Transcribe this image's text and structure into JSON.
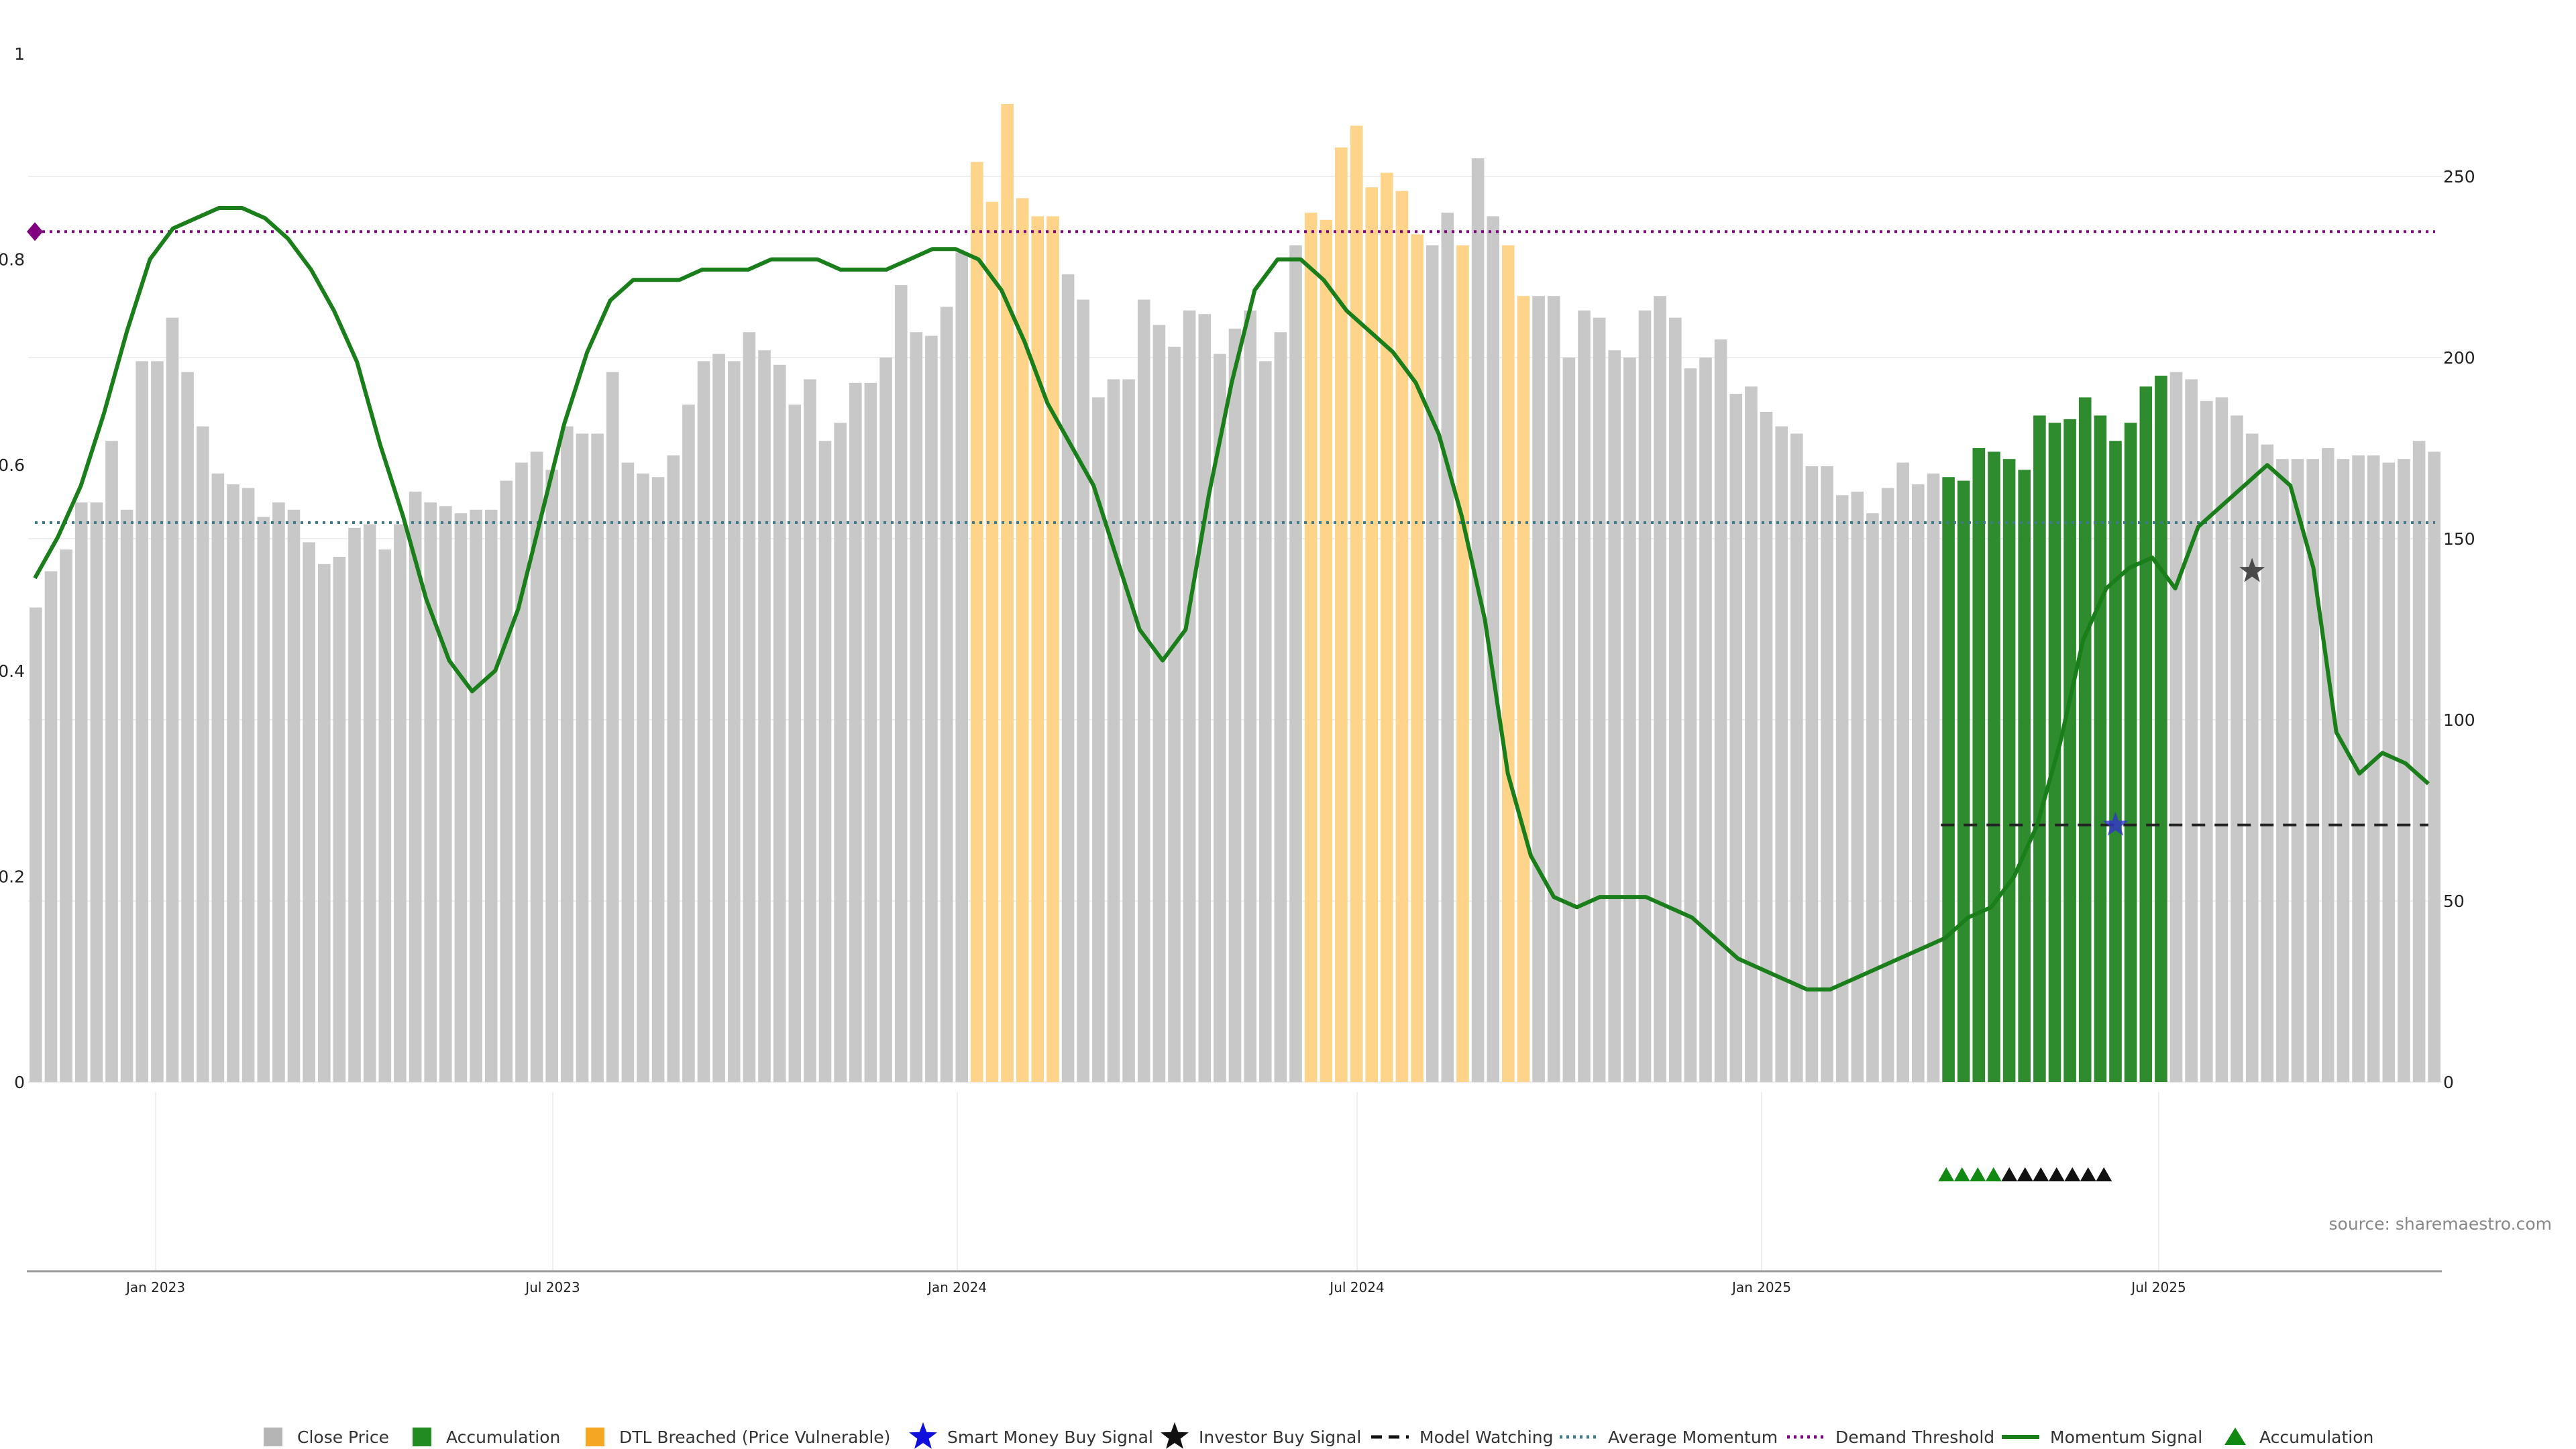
{
  "source_label": "source: sharemaestro.com",
  "colors": {
    "close": "#c8c8c8",
    "accumulation": "#2e8b2e",
    "dtl": "#fed38a",
    "momentum": "#1a7f1a",
    "avg_momentum": "#3d7a8c",
    "demand": "#800080",
    "model_watching": "#222222",
    "smart_money": "#3333cc",
    "investor": "#333333",
    "accum_marker": "#118811",
    "black_marker": "#111111",
    "grid": "#eeeeee"
  },
  "legend": [
    {
      "label": "Close Price",
      "icon": "square",
      "color": "#b5b5b5"
    },
    {
      "label": "Accumulation",
      "icon": "square",
      "color": "#228b22"
    },
    {
      "label": "DTL Breached (Price Vulnerable)",
      "icon": "square",
      "color": "#f5a623"
    },
    {
      "label": "Smart Money Buy Signal",
      "icon": "star",
      "color": "#1010dd"
    },
    {
      "label": "Investor Buy Signal",
      "icon": "star",
      "color": "#111111"
    },
    {
      "label": "Model Watching",
      "icon": "dash",
      "color": "#111111"
    },
    {
      "label": "Average Momentum",
      "icon": "dot",
      "color": "#3d7a8c"
    },
    {
      "label": "Demand Threshold",
      "icon": "dot",
      "color": "#800080"
    },
    {
      "label": "Momentum Signal",
      "icon": "line",
      "color": "#1a7f1a"
    },
    {
      "label": "Accumulation",
      "icon": "triangle",
      "color": "#118811"
    }
  ],
  "chart_data": {
    "type": "bar",
    "title": "",
    "xlabel": "",
    "ylabel": "",
    "x_ticks": [
      "Jan 2023",
      "Jul 2023",
      "Jan 2024",
      "Jul 2024",
      "Jan 2025",
      "Jul 2025"
    ],
    "left_axis": {
      "ticks": [
        "0",
        "0.2",
        "0.4",
        "0.6",
        "0.8",
        "1"
      ],
      "ylim": [
        0,
        1
      ]
    },
    "right_axis": {
      "ticks": [
        "0",
        "50",
        "100",
        "150",
        "200",
        "250"
      ],
      "ylim": [
        0,
        285
      ]
    },
    "grid": true,
    "legend_position": "bottom",
    "series": [
      {
        "name": "Close Price",
        "axis": "right",
        "values": [
          131,
          141,
          147,
          160,
          160,
          177,
          158,
          199,
          199,
          211,
          196,
          181,
          168,
          165,
          164,
          156,
          160,
          158,
          149,
          143,
          145,
          153,
          154,
          147,
          154,
          163,
          160,
          159,
          157,
          158,
          158,
          166,
          171,
          174,
          169,
          181,
          179,
          179,
          196,
          171,
          168,
          167,
          173,
          187,
          199,
          201,
          199,
          207,
          202,
          198,
          187,
          194,
          177,
          182,
          193,
          193,
          200,
          220,
          207,
          206,
          214,
          229,
          254,
          243,
          270,
          244,
          239,
          239,
          223,
          216,
          189,
          194,
          194,
          216,
          209,
          203,
          213,
          212,
          201,
          208,
          213,
          199,
          207,
          231,
          240,
          238,
          258,
          264,
          247,
          251,
          246,
          234,
          231,
          240,
          231,
          255,
          239,
          231,
          217,
          217,
          217,
          200,
          213,
          211,
          202,
          200,
          213,
          217,
          211,
          197,
          200,
          205,
          190,
          192,
          185,
          181,
          179,
          170,
          170,
          162,
          163,
          157,
          164,
          171,
          165,
          168,
          167,
          166,
          175,
          174,
          172,
          169,
          184,
          182,
          183,
          189,
          184,
          177,
          182,
          192,
          195,
          196,
          194,
          188,
          189,
          184,
          179,
          176,
          172,
          172,
          172,
          175,
          172,
          173,
          173,
          171,
          172,
          177,
          174
        ]
      },
      {
        "name": "Momentum Signal",
        "axis": "left",
        "values": [
          0.49,
          0.53,
          0.58,
          0.65,
          0.73,
          0.8,
          0.83,
          0.84,
          0.85,
          0.85,
          0.84,
          0.82,
          0.79,
          0.75,
          0.7,
          0.62,
          0.55,
          0.47,
          0.41,
          0.38,
          0.4,
          0.46,
          0.55,
          0.64,
          0.71,
          0.76,
          0.78,
          0.78,
          0.78,
          0.79,
          0.79,
          0.79,
          0.8,
          0.8,
          0.8,
          0.79,
          0.79,
          0.79,
          0.8,
          0.81,
          0.81,
          0.8,
          0.77,
          0.72,
          0.66,
          0.62,
          0.58,
          0.51,
          0.44,
          0.41,
          0.44,
          0.57,
          0.68,
          0.77,
          0.8,
          0.8,
          0.78,
          0.75,
          0.73,
          0.71,
          0.68,
          0.63,
          0.55,
          0.45,
          0.3,
          0.22,
          0.18,
          0.17,
          0.18,
          0.18,
          0.18,
          0.17,
          0.16,
          0.14,
          0.12,
          0.11,
          0.1,
          0.09,
          0.09,
          0.1,
          0.11,
          0.12,
          0.13,
          0.14,
          0.16,
          0.17,
          0.2,
          0.25,
          0.33,
          0.43,
          0.48,
          0.5,
          0.51,
          0.48,
          0.54,
          0.56,
          0.58,
          0.6,
          0.58,
          0.5,
          0.34,
          0.3,
          0.32,
          0.31,
          0.29
        ]
      },
      {
        "name": "Average Momentum",
        "axis": "left",
        "values": [
          0.544
        ]
      },
      {
        "name": "Demand Threshold",
        "axis": "left",
        "values": [
          0.827
        ]
      },
      {
        "name": "Model Watching",
        "axis": "left",
        "values": [
          0.25
        ]
      }
    ],
    "dtl_breached_bar_indexes": [
      62,
      63,
      64,
      65,
      66,
      67,
      84,
      85,
      86,
      87,
      88,
      89,
      90,
      91,
      94,
      97,
      98
    ],
    "accumulation_bar_indexes": [
      126,
      127,
      128,
      129,
      130,
      131,
      132,
      133,
      134,
      135,
      136,
      137,
      138,
      139,
      140
    ],
    "signals": {
      "smart_money_buy": {
        "bar_index": 137,
        "value": 0.25
      },
      "investor_buy": {
        "bar_index": 146,
        "value": 0.5
      },
      "demand_marker": {
        "bar_index": 0,
        "value": 0.827
      }
    },
    "accumulation_markers": {
      "green_count": 4,
      "black_count": 7,
      "start_bar_index": 126
    }
  }
}
